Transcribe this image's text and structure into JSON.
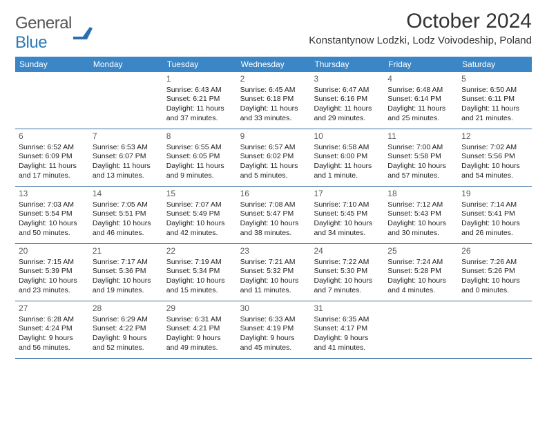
{
  "logo": {
    "text_general": "General",
    "text_blue": "Blue"
  },
  "title": "October 2024",
  "location": "Konstantynow Lodzki, Lodz Voivodeship, Poland",
  "day_headers": [
    "Sunday",
    "Monday",
    "Tuesday",
    "Wednesday",
    "Thursday",
    "Friday",
    "Saturday"
  ],
  "colors": {
    "header_bg": "#3b86c6",
    "header_text": "#ffffff",
    "week_border": "#3b6fa3",
    "logo_blue": "#2a7ab8",
    "text": "#222222",
    "daynum": "#5a5a5a"
  },
  "weeks": [
    [
      null,
      null,
      {
        "n": "1",
        "r": "6:43 AM",
        "s": "6:21 PM",
        "d": "11 hours and 37 minutes."
      },
      {
        "n": "2",
        "r": "6:45 AM",
        "s": "6:18 PM",
        "d": "11 hours and 33 minutes."
      },
      {
        "n": "3",
        "r": "6:47 AM",
        "s": "6:16 PM",
        "d": "11 hours and 29 minutes."
      },
      {
        "n": "4",
        "r": "6:48 AM",
        "s": "6:14 PM",
        "d": "11 hours and 25 minutes."
      },
      {
        "n": "5",
        "r": "6:50 AM",
        "s": "6:11 PM",
        "d": "11 hours and 21 minutes."
      }
    ],
    [
      {
        "n": "6",
        "r": "6:52 AM",
        "s": "6:09 PM",
        "d": "11 hours and 17 minutes."
      },
      {
        "n": "7",
        "r": "6:53 AM",
        "s": "6:07 PM",
        "d": "11 hours and 13 minutes."
      },
      {
        "n": "8",
        "r": "6:55 AM",
        "s": "6:05 PM",
        "d": "11 hours and 9 minutes."
      },
      {
        "n": "9",
        "r": "6:57 AM",
        "s": "6:02 PM",
        "d": "11 hours and 5 minutes."
      },
      {
        "n": "10",
        "r": "6:58 AM",
        "s": "6:00 PM",
        "d": "11 hours and 1 minute."
      },
      {
        "n": "11",
        "r": "7:00 AM",
        "s": "5:58 PM",
        "d": "10 hours and 57 minutes."
      },
      {
        "n": "12",
        "r": "7:02 AM",
        "s": "5:56 PM",
        "d": "10 hours and 54 minutes."
      }
    ],
    [
      {
        "n": "13",
        "r": "7:03 AM",
        "s": "5:54 PM",
        "d": "10 hours and 50 minutes."
      },
      {
        "n": "14",
        "r": "7:05 AM",
        "s": "5:51 PM",
        "d": "10 hours and 46 minutes."
      },
      {
        "n": "15",
        "r": "7:07 AM",
        "s": "5:49 PM",
        "d": "10 hours and 42 minutes."
      },
      {
        "n": "16",
        "r": "7:08 AM",
        "s": "5:47 PM",
        "d": "10 hours and 38 minutes."
      },
      {
        "n": "17",
        "r": "7:10 AM",
        "s": "5:45 PM",
        "d": "10 hours and 34 minutes."
      },
      {
        "n": "18",
        "r": "7:12 AM",
        "s": "5:43 PM",
        "d": "10 hours and 30 minutes."
      },
      {
        "n": "19",
        "r": "7:14 AM",
        "s": "5:41 PM",
        "d": "10 hours and 26 minutes."
      }
    ],
    [
      {
        "n": "20",
        "r": "7:15 AM",
        "s": "5:39 PM",
        "d": "10 hours and 23 minutes."
      },
      {
        "n": "21",
        "r": "7:17 AM",
        "s": "5:36 PM",
        "d": "10 hours and 19 minutes."
      },
      {
        "n": "22",
        "r": "7:19 AM",
        "s": "5:34 PM",
        "d": "10 hours and 15 minutes."
      },
      {
        "n": "23",
        "r": "7:21 AM",
        "s": "5:32 PM",
        "d": "10 hours and 11 minutes."
      },
      {
        "n": "24",
        "r": "7:22 AM",
        "s": "5:30 PM",
        "d": "10 hours and 7 minutes."
      },
      {
        "n": "25",
        "r": "7:24 AM",
        "s": "5:28 PM",
        "d": "10 hours and 4 minutes."
      },
      {
        "n": "26",
        "r": "7:26 AM",
        "s": "5:26 PM",
        "d": "10 hours and 0 minutes."
      }
    ],
    [
      {
        "n": "27",
        "r": "6:28 AM",
        "s": "4:24 PM",
        "d": "9 hours and 56 minutes."
      },
      {
        "n": "28",
        "r": "6:29 AM",
        "s": "4:22 PM",
        "d": "9 hours and 52 minutes."
      },
      {
        "n": "29",
        "r": "6:31 AM",
        "s": "4:21 PM",
        "d": "9 hours and 49 minutes."
      },
      {
        "n": "30",
        "r": "6:33 AM",
        "s": "4:19 PM",
        "d": "9 hours and 45 minutes."
      },
      {
        "n": "31",
        "r": "6:35 AM",
        "s": "4:17 PM",
        "d": "9 hours and 41 minutes."
      },
      null,
      null
    ]
  ]
}
